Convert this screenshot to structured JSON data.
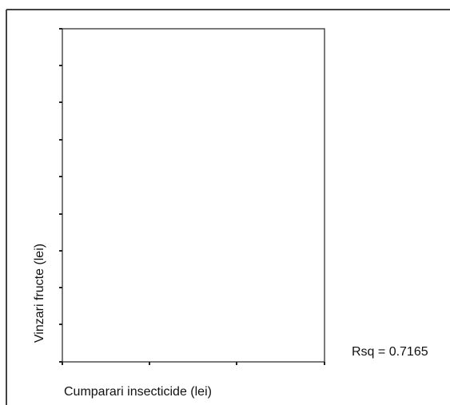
{
  "chart_data": {
    "type": "scatter",
    "xlabel": "Cumparari insecticide (lei)",
    "ylabel": "Vinzari fructe (lei)",
    "annotation": "Rsq = 0.7165",
    "x": [],
    "values": []
  }
}
